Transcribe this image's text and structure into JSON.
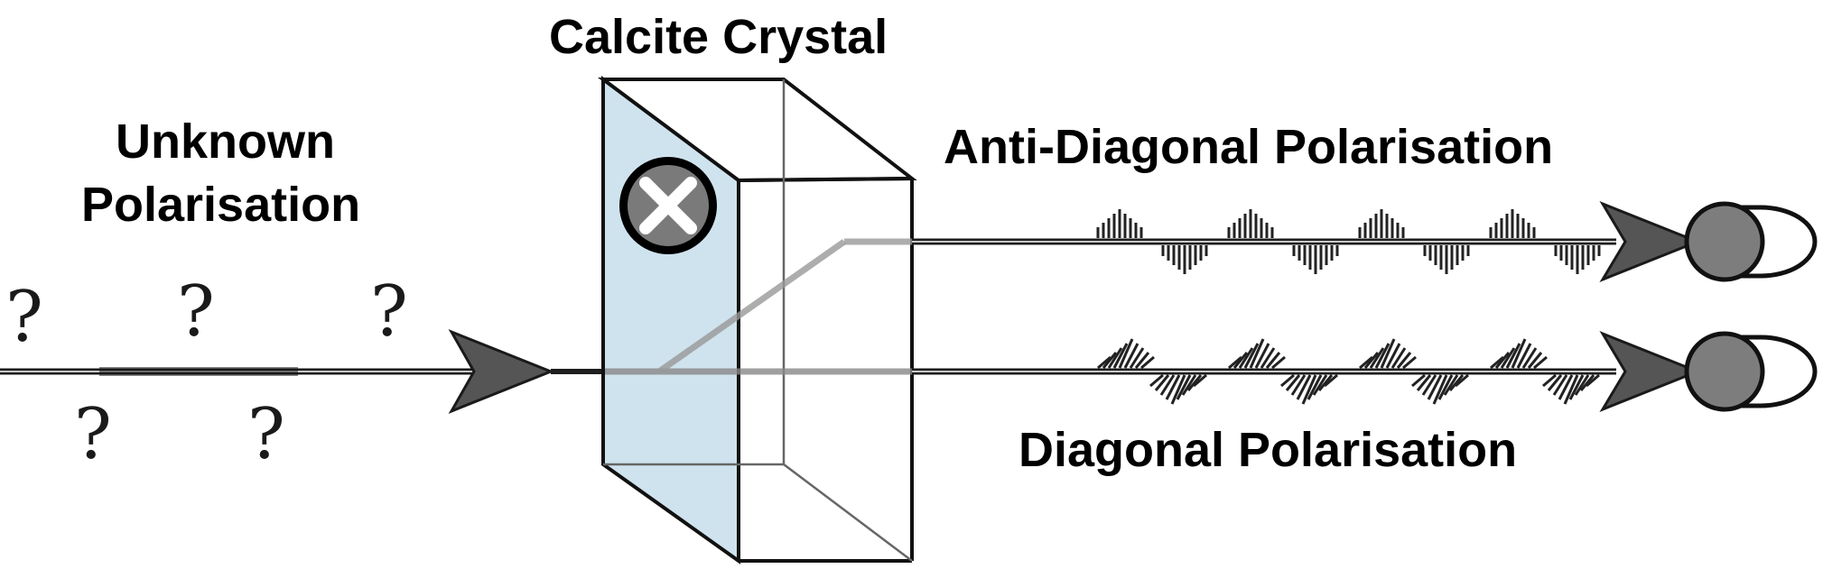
{
  "labels": {
    "unknown_line1": "Unknown",
    "unknown_line2": "Polarisation",
    "crystal": "Calcite Crystal",
    "anti_diagonal": "Anti-Diagonal Polarisation",
    "diagonal": "Diagonal Polarisation"
  },
  "question_marks": [
    "?",
    "?",
    "?",
    "?",
    "?"
  ],
  "icons": {
    "crystal_marker": "close-icon",
    "input_arrow": "arrowhead-icon",
    "detectors": "detector-icon"
  },
  "colors": {
    "crystal_face": "#cfe3ee",
    "marker_fill": "#7a7a7a",
    "detector_fill": "#7d7d7d",
    "beam": "#222222"
  }
}
